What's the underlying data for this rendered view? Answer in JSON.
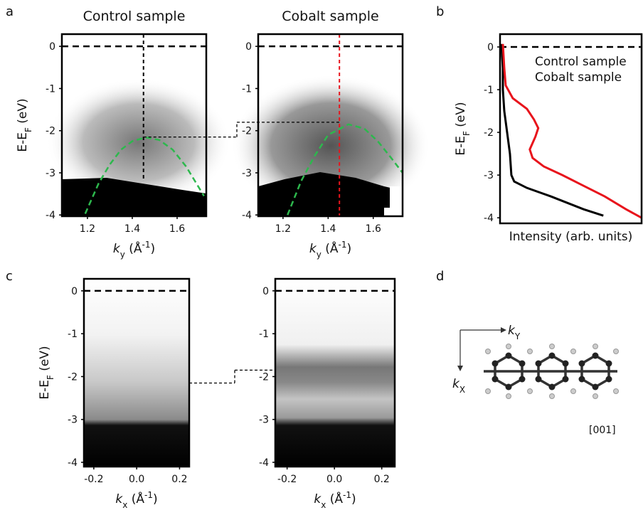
{
  "panel_labels": [
    "a",
    "b",
    "c",
    "d"
  ],
  "chart_data": [
    {
      "type": "image",
      "title": "Control sample",
      "title_color": "#000000",
      "ylabel": [
        "E-E",
        "F",
        " (eV)"
      ],
      "xlabel": [
        "k",
        "y",
        " (Å",
        "-1",
        ")"
      ],
      "xlim": [
        1.086,
        1.73
      ],
      "ylim": [
        -4.03,
        0.29
      ],
      "xticks": [
        1.2,
        1.4,
        1.6
      ],
      "yticks": [
        0,
        -1,
        -2,
        -3,
        -4
      ],
      "fermi_level": 0,
      "cut_x": 1.45,
      "cut_bottom": -3.15,
      "cut_color": "#000000",
      "band_top": -2.15,
      "fit": {
        "color": "#2db84d",
        "x": [
          1.19,
          1.25,
          1.3,
          1.35,
          1.4,
          1.46,
          1.52,
          1.58,
          1.64,
          1.72
        ],
        "y": [
          -3.97,
          -3.25,
          -2.8,
          -2.45,
          -2.25,
          -2.16,
          -2.22,
          -2.45,
          -2.85,
          -3.55
        ]
      }
    },
    {
      "type": "image",
      "title": "Cobalt sample",
      "title_color": "#e8141c",
      "xlabel": [
        "k",
        "y",
        " (Å",
        "-1",
        ")"
      ],
      "xlim": [
        1.09,
        1.73
      ],
      "ylim": [
        -4.03,
        0.29
      ],
      "xticks": [
        1.2,
        1.4,
        1.6
      ],
      "yticks": [
        0,
        -1,
        -2,
        -3,
        -4
      ],
      "fermi_level": 0,
      "cut_x": 1.45,
      "cut_color": "#e8141c",
      "band_top": -1.8,
      "fit": {
        "color": "#2db84d",
        "x": [
          1.22,
          1.28,
          1.34,
          1.4,
          1.49,
          1.56,
          1.62,
          1.68,
          1.73
        ],
        "y": [
          -4.0,
          -3.2,
          -2.6,
          -2.1,
          -1.85,
          -1.95,
          -2.25,
          -2.65,
          -3.0
        ]
      }
    },
    {
      "type": "line",
      "ylabel": [
        "E-E",
        "F",
        " (eV)"
      ],
      "xlabel": "Intensity (arb. units)",
      "xlim": [
        0,
        1
      ],
      "ylim": [
        -4.13,
        0.3
      ],
      "yticks": [
        0,
        -1,
        -2,
        -3,
        -4
      ],
      "fermi_level": 0,
      "series": [
        {
          "name": "Control sample",
          "color": "#000000",
          "x": [
            0.01,
            0.02,
            0.02,
            0.03,
            0.05,
            0.07,
            0.08,
            0.1,
            0.19,
            0.36,
            0.59,
            0.73
          ],
          "y": [
            0.07,
            -0.5,
            -1.0,
            -1.5,
            -2.0,
            -2.5,
            -3.0,
            -3.15,
            -3.3,
            -3.5,
            -3.8,
            -3.95
          ]
        },
        {
          "name": "Cobalt sample",
          "color": "#e8141c",
          "x": [
            0.02,
            0.03,
            0.04,
            0.09,
            0.19,
            0.24,
            0.27,
            0.25,
            0.21,
            0.23,
            0.31,
            0.44,
            0.56,
            0.74,
            0.89,
            1.0
          ],
          "y": [
            0.07,
            -0.5,
            -0.9,
            -1.2,
            -1.45,
            -1.7,
            -1.9,
            -2.1,
            -2.4,
            -2.6,
            -2.8,
            -3.0,
            -3.2,
            -3.5,
            -3.8,
            -4.0
          ]
        }
      ]
    },
    {
      "type": "image",
      "ylabel": [
        "E-E",
        "F",
        " (eV)"
      ],
      "xlabel": [
        "k",
        "x",
        " (Å",
        "-1",
        ")"
      ],
      "xlim": [
        -0.246,
        0.245
      ],
      "ylim": [
        -4.1,
        0.28
      ],
      "xticks": [
        -0.2,
        {
          "value": 0,
          "label": "0.0"
        },
        0.2
      ],
      "yticks": [
        0,
        -1,
        -2,
        -3,
        -4
      ],
      "fermi_level": 0,
      "band_top": -2.15
    },
    {
      "type": "image",
      "xlabel": [
        "k",
        "x",
        " (Å",
        "-1",
        ")"
      ],
      "xlim": [
        -0.25,
        0.255
      ],
      "ylim": [
        -4.1,
        0.28
      ],
      "xticks": [
        -0.2,
        {
          "value": 0,
          "label": "0.0"
        },
        0.2
      ],
      "yticks": [
        0,
        -1,
        -2,
        -3,
        -4
      ],
      "fermi_level": 0,
      "band_top": -1.85
    }
  ],
  "diagram": {
    "k_y": [
      "k",
      "Y"
    ],
    "k_x": [
      "k",
      "X"
    ],
    "direction": "[001]"
  }
}
